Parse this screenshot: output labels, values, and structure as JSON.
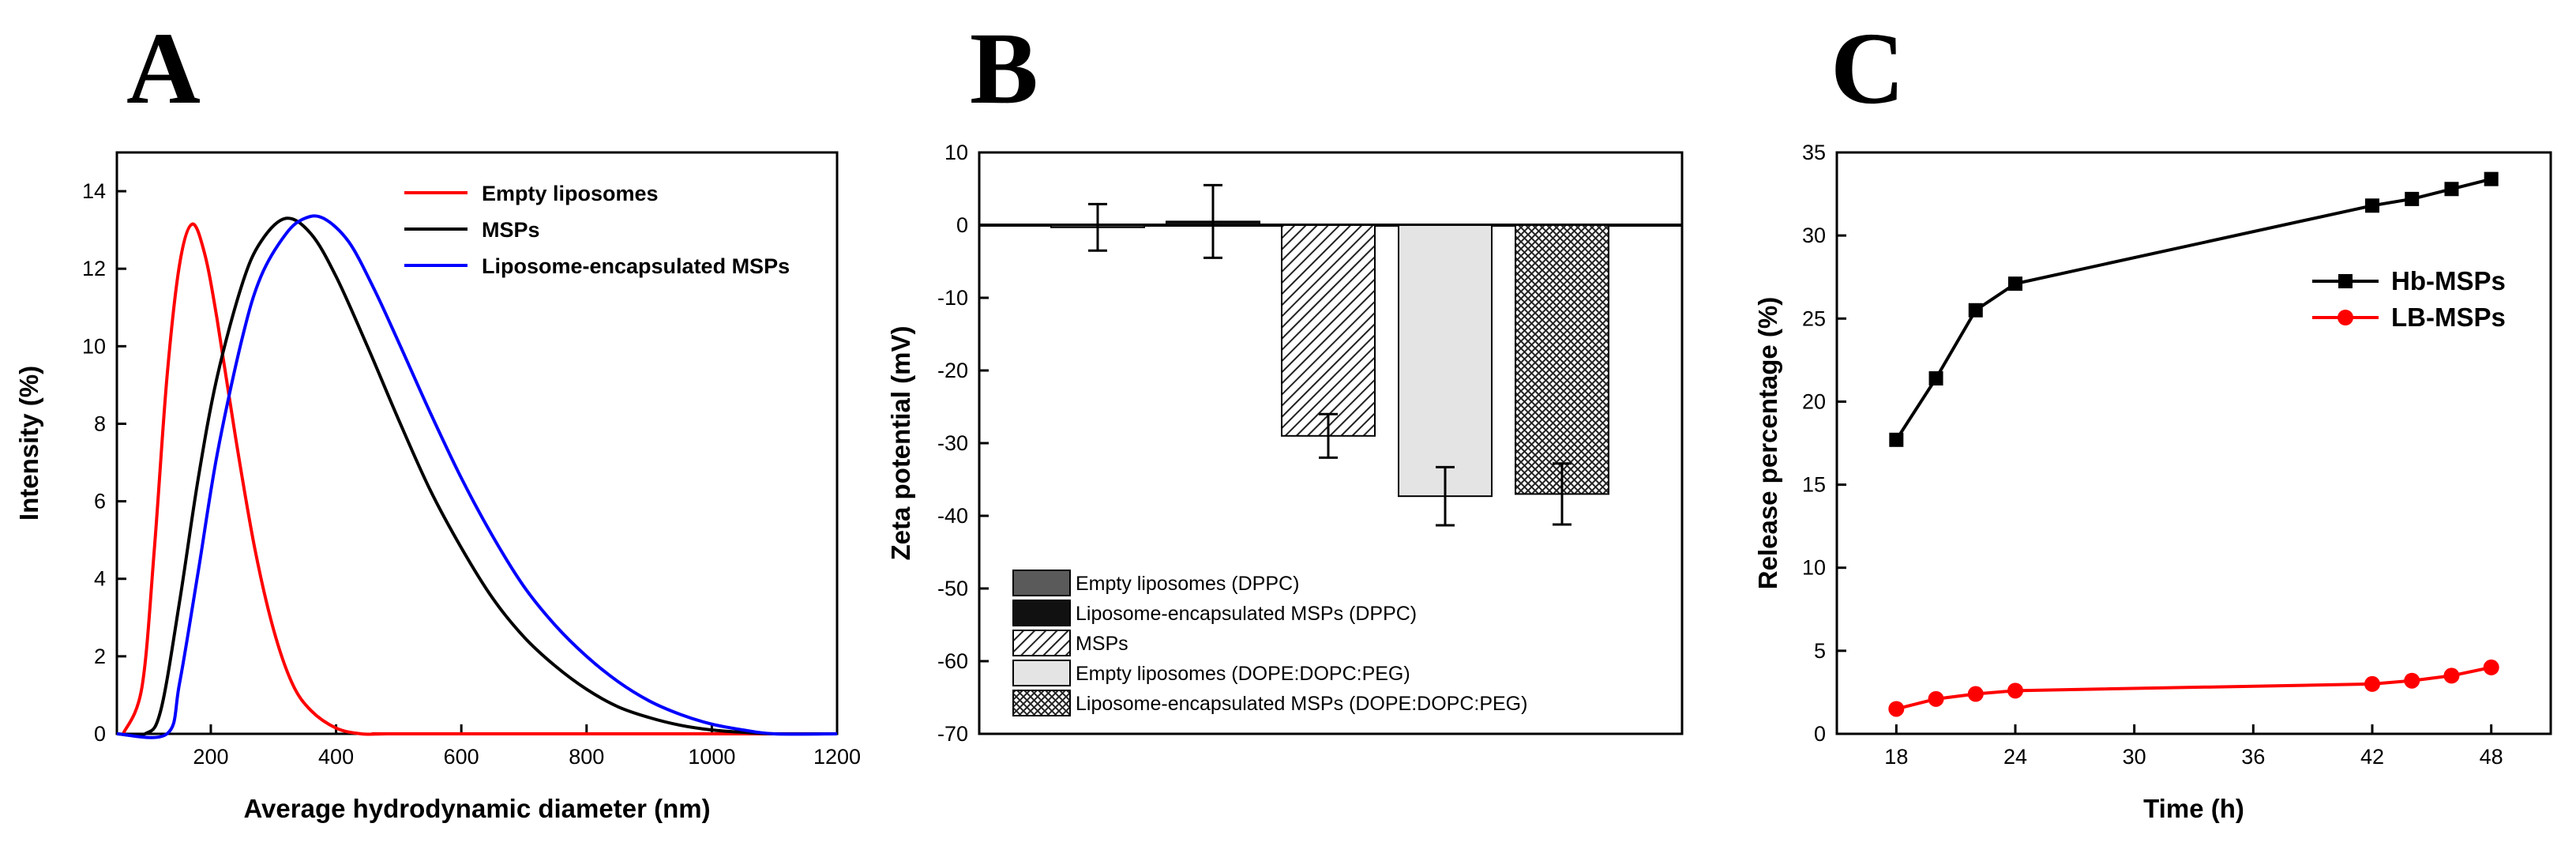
{
  "chart_data": [
    {
      "type": "line",
      "panel_label": "A",
      "title": "",
      "xlabel": "Average hydrodynamic diameter (nm)",
      "ylabel": "Intensity (%)",
      "xlim": [
        50,
        1200
      ],
      "ylim": [
        0,
        15
      ],
      "x_ticks": [
        "200",
        "400",
        "600",
        "800",
        "1000",
        "1200"
      ],
      "y_ticks": [
        "0",
        "2",
        "4",
        "6",
        "8",
        "10",
        "12",
        "14"
      ],
      "legend_position": "top-right",
      "series": [
        {
          "name": "Empty liposomes",
          "color": "#ff0000",
          "x": [
            60,
            90,
            110,
            130,
            150,
            170,
            190,
            210,
            240,
            270,
            300,
            330,
            360,
            400,
            440,
            480,
            520,
            1200
          ],
          "y": [
            0,
            1.2,
            4.8,
            9.2,
            12.1,
            13.15,
            12.4,
            10.7,
            7.6,
            4.8,
            2.7,
            1.3,
            0.6,
            0.15,
            0,
            0,
            0,
            0
          ]
        },
        {
          "name": "MSPs",
          "color": "#000000",
          "x": [
            50,
            95,
            120,
            150,
            180,
            210,
            250,
            280,
            320,
            360,
            400,
            450,
            500,
            550,
            600,
            650,
            700,
            750,
            800,
            850,
            900,
            950,
            1000,
            1050,
            1100,
            1200
          ],
          "y": [
            0,
            0,
            0.6,
            3.4,
            6.6,
            9.2,
            11.6,
            12.7,
            13.3,
            12.9,
            11.8,
            10.0,
            8.1,
            6.3,
            4.8,
            3.5,
            2.5,
            1.75,
            1.15,
            0.7,
            0.42,
            0.22,
            0.1,
            0.04,
            0,
            0
          ]
        },
        {
          "name": "Liposome-encapsulated MSPs",
          "color": "#0000ff",
          "x": [
            50,
            130,
            150,
            180,
            210,
            250,
            280,
            320,
            350,
            380,
            420,
            460,
            500,
            550,
            600,
            650,
            700,
            750,
            800,
            850,
            900,
            950,
            1000,
            1050,
            1100,
            1200
          ],
          "y": [
            0,
            0,
            1.3,
            4.2,
            7.2,
            10.2,
            11.8,
            12.9,
            13.3,
            13.3,
            12.7,
            11.5,
            10.1,
            8.3,
            6.6,
            5.1,
            3.8,
            2.8,
            2.0,
            1.35,
            0.85,
            0.5,
            0.25,
            0.1,
            0,
            0
          ]
        }
      ]
    },
    {
      "type": "bar",
      "panel_label": "B",
      "title": "",
      "xlabel": "",
      "ylabel": "Zeta potential (mV)",
      "ylim": [
        -70,
        10
      ],
      "y_ticks": [
        "10",
        "0",
        "-10",
        "-20",
        "-30",
        "-40",
        "-50",
        "-60",
        "-70"
      ],
      "legend_position": "bottom-left",
      "categories": [
        "Empty liposomes (DPPC)",
        "Liposome-encapsulated MSPs (DPPC)",
        "MSPs",
        "Empty liposomes (DOPE:DOPC:PEG)",
        "Liposome-encapsulated MSPs (DOPE:DOPC:PEG)"
      ],
      "values": [
        -0.3,
        0.5,
        -29,
        -37.3,
        -37
      ],
      "errors": [
        3.2,
        5.0,
        3.0,
        4.0,
        4.2
      ],
      "fills": [
        "#5a5a5a",
        "#111111",
        "hatch",
        "#e4e4e4",
        "crosshatch"
      ]
    },
    {
      "type": "line",
      "panel_label": "C",
      "title": "",
      "xlabel": "Time (h)",
      "ylabel": "Release percentage (%)",
      "xlim": [
        15,
        51
      ],
      "ylim": [
        0,
        35
      ],
      "x_ticks": [
        "18",
        "24",
        "30",
        "36",
        "42",
        "48"
      ],
      "y_ticks": [
        "0",
        "5",
        "10",
        "15",
        "20",
        "25",
        "30",
        "35"
      ],
      "legend_position": "center-right",
      "series": [
        {
          "name": "Hb-MSPs",
          "color": "#000000",
          "marker": "square",
          "x": [
            18,
            20,
            22,
            24,
            42,
            44,
            46,
            48
          ],
          "y": [
            17.7,
            21.4,
            25.5,
            27.1,
            31.8,
            32.2,
            32.8,
            33.4
          ]
        },
        {
          "name": "LB-MSPs",
          "color": "#ff0000",
          "marker": "circle",
          "x": [
            18,
            20,
            22,
            24,
            42,
            44,
            46,
            48
          ],
          "y": [
            1.5,
            2.1,
            2.4,
            2.6,
            3.0,
            3.2,
            3.5,
            4.0
          ]
        }
      ]
    }
  ]
}
